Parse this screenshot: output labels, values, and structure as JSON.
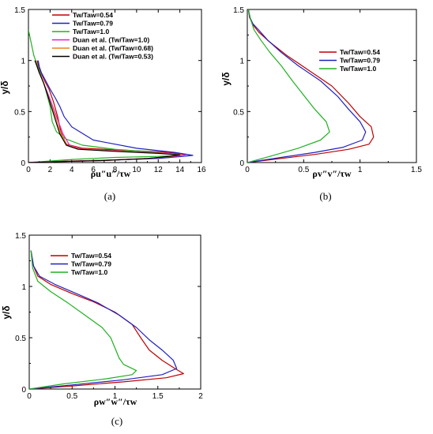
{
  "chart_data": [
    {
      "id": "a",
      "type": "line",
      "caption": "(a)",
      "ylabel": "y/δ",
      "xlabel": "ρu″u″/τw",
      "xlim": [
        0,
        16
      ],
      "ylim": [
        0,
        1.5
      ],
      "xticks": [
        0,
        2,
        4,
        6,
        8,
        10,
        12,
        14,
        16
      ],
      "xtick_labels": [
        "0",
        "2",
        "4",
        "6",
        "8",
        "10",
        "12",
        "14",
        "16"
      ],
      "yticks": [
        0,
        0.5,
        1,
        1.5
      ],
      "ytick_labels": [
        "0",
        "0.5",
        "1",
        "1.5"
      ],
      "legend_position": "top-right",
      "series": [
        {
          "name": "Tw/Taw=0.54",
          "color": "#c00000",
          "x": [
            0.0,
            2.0,
            6.0,
            10.5,
            13.0,
            14.6,
            13.0,
            9.0,
            5.0,
            3.5,
            3.0,
            2.7,
            2.3,
            1.9,
            1.5,
            1.2,
            1.0,
            0.9,
            0.8
          ],
          "y": [
            0.0,
            0.01,
            0.02,
            0.035,
            0.05,
            0.08,
            0.1,
            0.12,
            0.14,
            0.18,
            0.3,
            0.45,
            0.6,
            0.72,
            0.8,
            0.87,
            0.92,
            0.96,
            1.0
          ]
        },
        {
          "name": "Tw/Taw=0.79",
          "color": "#2020c0",
          "x": [
            0.0,
            3.0,
            8.0,
            12.0,
            14.3,
            15.2,
            13.5,
            10.0,
            6.0,
            4.0,
            3.3,
            2.9,
            2.5,
            2.0,
            1.5,
            1.2,
            1.0,
            0.9
          ],
          "y": [
            0.0,
            0.01,
            0.025,
            0.04,
            0.06,
            0.07,
            0.1,
            0.14,
            0.22,
            0.35,
            0.45,
            0.55,
            0.63,
            0.72,
            0.82,
            0.88,
            0.94,
            1.0
          ]
        },
        {
          "name": "Tw/Taw=1.0",
          "color": "#20b020",
          "x": [
            0.0,
            4.0,
            8.0,
            12.0,
            14.0,
            12.0,
            8.0,
            5.0,
            3.5,
            2.6,
            2.2,
            2.0,
            1.5,
            1.0,
            0.5,
            0.2,
            0.0
          ],
          "y": [
            0.0,
            0.03,
            0.05,
            0.06,
            0.07,
            0.1,
            0.13,
            0.17,
            0.23,
            0.3,
            0.4,
            0.55,
            0.75,
            0.9,
            1.05,
            1.2,
            1.3
          ]
        },
        {
          "name": "Duan et al. (Tw/Taw=1.0)",
          "color": "#e020c0",
          "x": [
            0.0,
            3.0,
            7.0,
            11.0,
            13.5,
            14.5,
            13.0,
            9.0,
            5.0,
            3.8,
            3.2,
            2.6,
            2.0,
            1.4,
            1.0,
            0.8,
            0.6
          ],
          "y": [
            0.0,
            0.01,
            0.02,
            0.04,
            0.06,
            0.075,
            0.09,
            0.11,
            0.13,
            0.17,
            0.28,
            0.45,
            0.62,
            0.78,
            0.88,
            0.94,
            1.0
          ]
        },
        {
          "name": "Duan et al. (Tw/Taw=0.68)",
          "color": "#f08020",
          "x": [
            0.0,
            3.0,
            7.0,
            11.0,
            13.2,
            14.2,
            12.5,
            8.5,
            4.8,
            3.6,
            3.0,
            2.5,
            1.9,
            1.4,
            1.0,
            0.8,
            0.6
          ],
          "y": [
            0.0,
            0.01,
            0.02,
            0.04,
            0.06,
            0.075,
            0.09,
            0.11,
            0.13,
            0.17,
            0.28,
            0.45,
            0.62,
            0.78,
            0.88,
            0.94,
            1.0
          ]
        },
        {
          "name": "Duan et al. (Tw/Taw=0.53)",
          "color": "#000000",
          "x": [
            0.0,
            3.0,
            7.0,
            11.0,
            13.0,
            14.0,
            12.0,
            8.0,
            4.6,
            3.5,
            2.9,
            2.4,
            1.9,
            1.4,
            1.0,
            0.8,
            0.6
          ],
          "y": [
            0.0,
            0.01,
            0.02,
            0.04,
            0.06,
            0.075,
            0.09,
            0.11,
            0.13,
            0.17,
            0.28,
            0.45,
            0.62,
            0.78,
            0.88,
            0.94,
            1.0
          ]
        }
      ]
    },
    {
      "id": "b",
      "type": "line",
      "caption": "(b)",
      "ylabel": "y/δ",
      "xlabel": "ρv″v″/τw",
      "xlim": [
        0,
        1.5
      ],
      "ylim": [
        0,
        1.5
      ],
      "xticks": [
        0,
        0.5,
        1,
        1.5
      ],
      "xtick_labels": [
        "0",
        "0.5",
        "1",
        "1.5"
      ],
      "yticks": [
        0,
        0.5,
        1,
        1.5
      ],
      "ytick_labels": [
        "0",
        "0.5",
        "1",
        "1.5"
      ],
      "legend_position": "top-right",
      "series": [
        {
          "name": "Tw/Taw=0.54",
          "color": "#c00000",
          "x": [
            0.0,
            0.3,
            0.6,
            0.9,
            1.08,
            1.12,
            1.1,
            1.0,
            0.9,
            0.75,
            0.55,
            0.35,
            0.2,
            0.1,
            0.05,
            0.02,
            0.01
          ],
          "y": [
            0.0,
            0.04,
            0.08,
            0.13,
            0.18,
            0.25,
            0.35,
            0.45,
            0.58,
            0.75,
            0.9,
            1.05,
            1.18,
            1.28,
            1.35,
            1.42,
            1.5
          ]
        },
        {
          "name": "Tw/Taw=0.79",
          "color": "#2020c0",
          "x": [
            0.0,
            0.3,
            0.6,
            0.85,
            1.02,
            1.05,
            1.0,
            0.9,
            0.8,
            0.65,
            0.45,
            0.3,
            0.18,
            0.1,
            0.05,
            0.02,
            0.01
          ],
          "y": [
            0.0,
            0.05,
            0.1,
            0.15,
            0.22,
            0.3,
            0.4,
            0.52,
            0.65,
            0.8,
            0.95,
            1.08,
            1.2,
            1.3,
            1.36,
            1.43,
            1.5
          ]
        },
        {
          "name": "Tw/Taw=1.0",
          "color": "#20b020",
          "x": [
            0.0,
            0.2,
            0.45,
            0.65,
            0.73,
            0.7,
            0.6,
            0.5,
            0.4,
            0.3,
            0.2,
            0.12,
            0.06,
            0.03,
            0.01
          ],
          "y": [
            0.0,
            0.06,
            0.14,
            0.22,
            0.3,
            0.4,
            0.52,
            0.66,
            0.8,
            0.95,
            1.08,
            1.2,
            1.3,
            1.4,
            1.5
          ]
        }
      ]
    },
    {
      "id": "c",
      "type": "line",
      "caption": "(c)",
      "ylabel": "y/δ",
      "xlabel": "ρw″w″/τw",
      "xlim": [
        0,
        2
      ],
      "ylim": [
        0,
        1.5
      ],
      "xticks": [
        0,
        0.5,
        1,
        1.5,
        2
      ],
      "xtick_labels": [
        "0",
        "0.5",
        "1",
        "1.5",
        "2"
      ],
      "yticks": [
        0,
        0.5,
        1,
        1.5
      ],
      "ytick_labels": [
        "0",
        "0.5",
        "1",
        "1.5"
      ],
      "legend_position": "top-right",
      "series": [
        {
          "name": "Tw/Taw=0.54",
          "color": "#c00000",
          "x": [
            0.0,
            0.5,
            1.1,
            1.6,
            1.8,
            1.7,
            1.55,
            1.4,
            1.3,
            1.2,
            1.0,
            0.75,
            0.5,
            0.25,
            0.1,
            0.05,
            0.02
          ],
          "y": [
            0.0,
            0.03,
            0.07,
            0.11,
            0.15,
            0.2,
            0.28,
            0.38,
            0.5,
            0.63,
            0.75,
            0.85,
            0.93,
            1.02,
            1.1,
            1.2,
            1.35
          ]
        },
        {
          "name": "Tw/Taw=0.79",
          "color": "#2020c0",
          "x": [
            0.0,
            0.5,
            1.1,
            1.55,
            1.72,
            1.68,
            1.55,
            1.4,
            1.25,
            1.05,
            0.8,
            0.55,
            0.3,
            0.12,
            0.05,
            0.02
          ],
          "y": [
            0.0,
            0.04,
            0.09,
            0.14,
            0.2,
            0.28,
            0.38,
            0.48,
            0.6,
            0.72,
            0.84,
            0.93,
            1.02,
            1.1,
            1.2,
            1.35
          ]
        },
        {
          "name": "Tw/Taw=1.0",
          "color": "#20b020",
          "x": [
            0.0,
            0.4,
            0.9,
            1.2,
            1.25,
            1.1,
            1.05,
            1.0,
            0.95,
            0.85,
            0.65,
            0.45,
            0.25,
            0.1,
            0.04,
            0.02
          ],
          "y": [
            0.0,
            0.05,
            0.1,
            0.14,
            0.18,
            0.24,
            0.3,
            0.4,
            0.5,
            0.6,
            0.72,
            0.84,
            0.95,
            1.05,
            1.18,
            1.35
          ]
        }
      ]
    }
  ]
}
